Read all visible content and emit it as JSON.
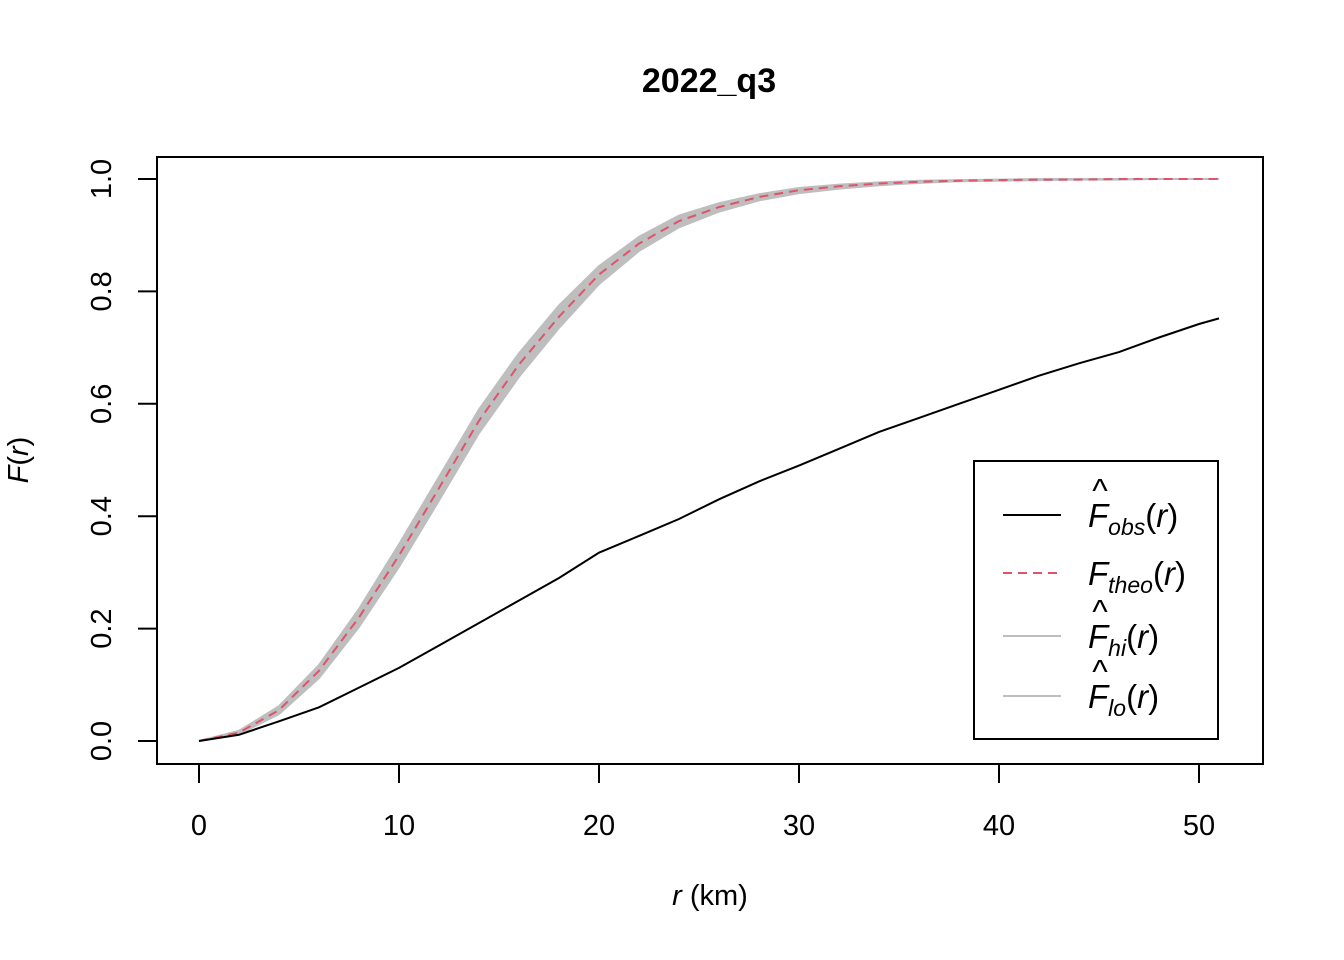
{
  "chart_data": {
    "type": "line",
    "title": "2022_q3",
    "xlabel": {
      "var": "r",
      "unit": " (km)"
    },
    "ylabel": {
      "fn": "F",
      "arg": "r"
    },
    "xlim": [
      0,
      51
    ],
    "ylim": [
      0,
      1
    ],
    "xticks": [
      0,
      10,
      20,
      30,
      40,
      50
    ],
    "yticks": [
      "0.0",
      "0.2",
      "0.4",
      "0.6",
      "0.8",
      "1.0"
    ],
    "grid": false,
    "legend_position": "bottom-right",
    "colors": {
      "obs": "#000000",
      "theo": "#DF536B",
      "envelope": "#BEBEBE"
    },
    "legend": [
      {
        "base": "F",
        "hat": true,
        "sub": "obs",
        "arg": "r",
        "style": "solid",
        "color": "#000000"
      },
      {
        "base": "F",
        "hat": false,
        "sub": "theo",
        "arg": "r",
        "style": "dashed",
        "color": "#DF536B"
      },
      {
        "base": "F",
        "hat": true,
        "sub": "hi",
        "arg": "r",
        "style": "solid",
        "color": "#BEBEBE"
      },
      {
        "base": "F",
        "hat": true,
        "sub": "lo",
        "arg": "r",
        "style": "solid",
        "color": "#BEBEBE"
      }
    ],
    "x": [
      0,
      2,
      4,
      6,
      8,
      10,
      12,
      14,
      16,
      18,
      20,
      22,
      24,
      26,
      28,
      30,
      32,
      34,
      36,
      38,
      40,
      42,
      44,
      46,
      48,
      50,
      51
    ],
    "series": [
      {
        "name": "obs",
        "values": [
          0,
          0.011,
          0.035,
          0.06,
          0.095,
          0.13,
          0.17,
          0.21,
          0.25,
          0.29,
          0.335,
          0.365,
          0.395,
          0.43,
          0.462,
          0.49,
          0.52,
          0.55,
          0.575,
          0.6,
          0.625,
          0.65,
          0.672,
          0.692,
          0.718,
          0.742,
          0.752
        ]
      },
      {
        "name": "theo",
        "values": [
          0,
          0.015,
          0.055,
          0.125,
          0.22,
          0.33,
          0.45,
          0.57,
          0.67,
          0.755,
          0.83,
          0.885,
          0.925,
          0.95,
          0.968,
          0.98,
          0.987,
          0.992,
          0.995,
          0.997,
          0.998,
          0.999,
          0.999,
          1.0,
          1.0,
          1.0,
          1.0
        ]
      },
      {
        "name": "hi",
        "values": [
          0,
          0.018,
          0.062,
          0.135,
          0.235,
          0.35,
          0.47,
          0.59,
          0.69,
          0.775,
          0.845,
          0.897,
          0.935,
          0.957,
          0.973,
          0.984,
          0.99,
          0.994,
          0.997,
          0.998,
          0.999,
          1.0,
          1.0,
          1.0,
          1.0,
          1.0,
          1.0
        ]
      },
      {
        "name": "lo",
        "values": [
          0,
          0.012,
          0.048,
          0.112,
          0.203,
          0.31,
          0.428,
          0.548,
          0.648,
          0.735,
          0.813,
          0.872,
          0.914,
          0.942,
          0.962,
          0.975,
          0.983,
          0.989,
          0.993,
          0.996,
          0.997,
          0.998,
          0.999,
          0.999,
          1.0,
          1.0,
          1.0
        ]
      }
    ]
  }
}
